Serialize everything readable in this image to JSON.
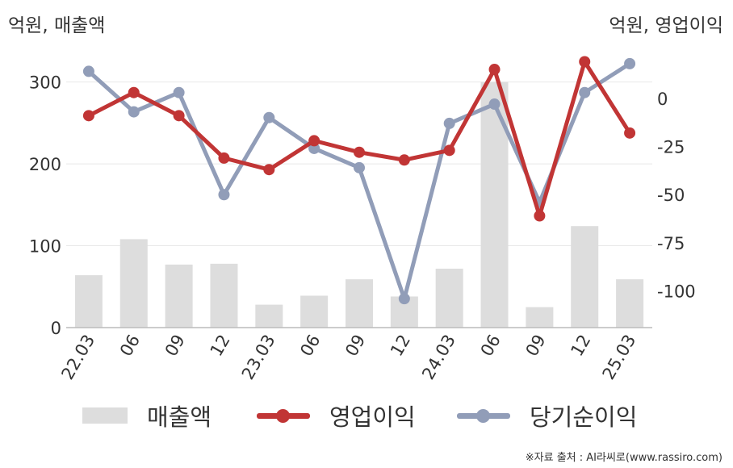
{
  "units": {
    "left": "억원, 매출액",
    "right": "억원, 영업이익"
  },
  "source": "※자료 출처 : AI라씨로(www.rassiro.com)",
  "colors": {
    "revenue": "#dddddd",
    "operating_profit": "#c13535",
    "net_income": "#919db8",
    "grid": "#e8e8e8",
    "axis": "#bbbbbb"
  },
  "chart_data": {
    "type": "bar+line",
    "categories": [
      "22.03",
      "06",
      "09",
      "12",
      "23.03",
      "06",
      "09",
      "12",
      "24.03",
      "06",
      "09",
      "12",
      "25.03"
    ],
    "series": [
      {
        "name": "매출액",
        "type": "bar",
        "axis": "left",
        "values": [
          64,
          108,
          77,
          78,
          28,
          39,
          59,
          38,
          72,
          300,
          25,
          124,
          59
        ]
      },
      {
        "name": "영업이익",
        "type": "line",
        "axis": "right",
        "values": [
          -9,
          3,
          -9,
          -31,
          -37,
          -22,
          -28,
          -32,
          -27,
          15,
          -61,
          19,
          -18
        ]
      },
      {
        "name": "당기순이익",
        "type": "line",
        "axis": "right",
        "values": [
          14,
          -7,
          3,
          -50,
          -10,
          -26,
          -36,
          -104,
          -13,
          -3,
          -54,
          3,
          18
        ]
      }
    ],
    "y_left": {
      "ylim": [
        0,
        346
      ],
      "ticks": [
        0,
        100,
        200,
        300
      ]
    },
    "y_right": {
      "ylim": [
        -119,
        28
      ],
      "ticks": [
        0,
        -25,
        -50,
        -75,
        -100
      ]
    },
    "grid": true,
    "legend": "bottom"
  }
}
